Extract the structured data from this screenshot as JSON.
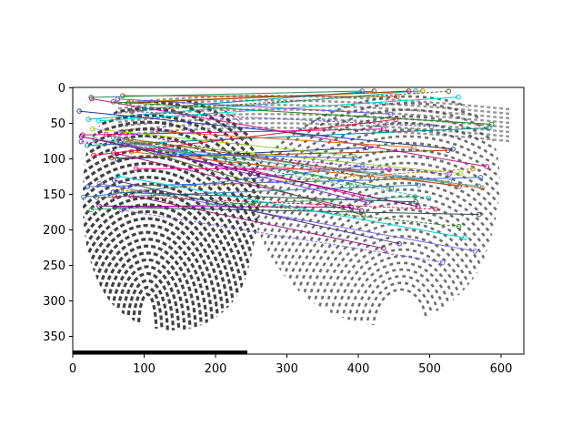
{
  "figure": {
    "x_ticks": [
      "0",
      "100",
      "200",
      "300",
      "400",
      "500",
      "600"
    ],
    "y_ticks": [
      "0",
      "50",
      "100",
      "150",
      "200",
      "250",
      "300",
      "350"
    ],
    "x_range": [
      0,
      632
    ],
    "y_range": [
      375,
      0
    ],
    "image_description_icon": "fingerprint-pair-image",
    "match_line_count": 52
  }
}
